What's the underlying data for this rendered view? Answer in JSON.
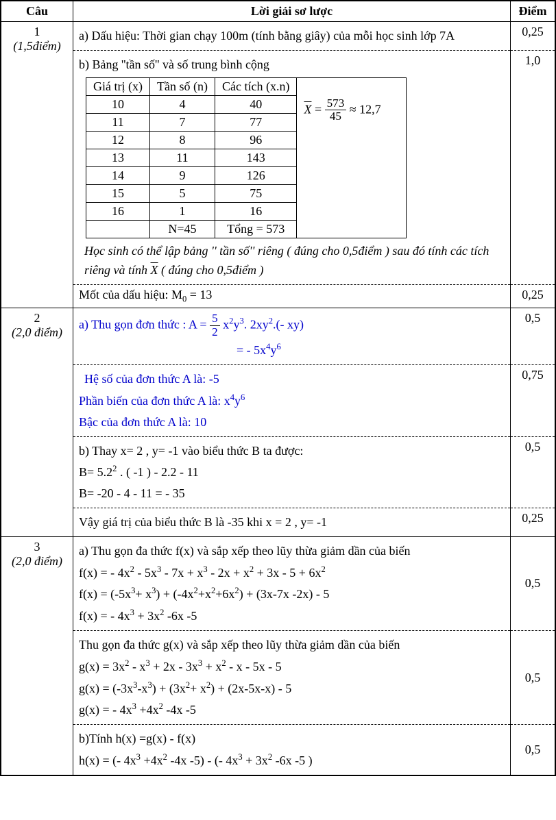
{
  "header": {
    "cau": "Câu",
    "loigiai": "Lời giải sơ lược",
    "diem": "Điểm"
  },
  "q1": {
    "num": "1",
    "pts": "(1,5điểm)",
    "a_text": "a)   Dấu hiệu: Thời gian chạy 100m (tính bằng giây) của mỗi học sinh lớp 7A",
    "a_diem": "0,25",
    "b_title": "b) Bảng ''tần số'' và số trung bình cộng",
    "b_diem": "1,0",
    "tbl_h1": "Giá trị (x)",
    "tbl_h2": "Tần số (n)",
    "tbl_h3": "Các tích (x.n)",
    "rows": [
      [
        "10",
        "4",
        "40"
      ],
      [
        "11",
        "7",
        "77"
      ],
      [
        "12",
        "8",
        "96"
      ],
      [
        "13",
        "11",
        "143"
      ],
      [
        "14",
        "9",
        "126"
      ],
      [
        "15",
        "5",
        "75"
      ],
      [
        "16",
        "1",
        "16"
      ]
    ],
    "tbl_sum_n": "N=45",
    "tbl_sum_xn": "Tổng = 573",
    "mean_num": "573",
    "mean_den": "45",
    "mean_approx": "≈ 12,7",
    "note1": "Học sinh có thể lập bảng '' tần số'' riêng ( đúng cho 0,5điểm ) sau đó tính các tích riêng và tính ",
    "note2": "  ( đúng cho 0,5điểm )",
    "mode_text": "Mốt của dấu hiệu: M",
    "mode_sub": "0",
    "mode_val": " = 13",
    "mode_diem": "0,25"
  },
  "q2": {
    "num": "2",
    "pts": "(2,0 điểm)",
    "a1": "a)   Thu gọn đơn thức :   A = ",
    "a1_frac_num": "5",
    "a1_frac_den": "2",
    "a1_rest": " x",
    "a1_exp1": "2",
    "a1_mid": "y",
    "a1_exp2": "3",
    "a1_tail": ". 2xy",
    "a1_exp3": "2",
    "a1_end": ".(- xy)",
    "a2_pre": "=   - 5x",
    "a2_exp1": "4",
    "a2_mid": "y",
    "a2_exp2": "6",
    "a_diem": "0,5",
    "b1": "Hệ số của đơn thức A là: -5",
    "b2_pre": "Phần biến của đơn thức A là:   x",
    "b2_e1": "4",
    "b2_mid": "y",
    "b2_e2": "6",
    "b3": "Bậc của đơn thức A là: 10",
    "b_diem": "0,75",
    "c1": "b)    Thay x= 2 , y= -1 vào biểu thức  B ta được:",
    "c2_pre": "B= 5.2",
    "c2_exp": "2",
    "c2_rest": " . ( -1 ) - 2.2 - 11",
    "c3": "B= -20 - 4 - 11 = - 35",
    "c_diem": "0,5",
    "d": "Vậy giá trị của biểu thức  B là -35  khi x = 2 , y= -1",
    "d_diem": "0,25"
  },
  "q3": {
    "num": "3",
    "pts": "(2,0 điểm)",
    "a1": "a) Thu gọn đa thức f(x) và sắp xếp theo lũy thừa giảm dần của biến",
    "a2_parts": [
      "f(x) = - 4x",
      "2",
      " - 5x",
      "3",
      " - 7x + x",
      "3",
      " - 2x + x",
      "2",
      " + 3x - 5 + 6x",
      "2"
    ],
    "a3_parts": [
      "f(x) = (-5x",
      "3",
      "+ x",
      "3",
      ")  + (-4x",
      "2",
      "+x",
      "2",
      "+6x",
      "2",
      ") + (3x-7x -2x) - 5"
    ],
    "a4_parts": [
      "f(x) = - 4x",
      "3",
      " + 3x",
      "2",
      " -6x -5"
    ],
    "a_diem": "0,5",
    "b1": "Thu gọn đa thức g(x) và sắp xếp theo lũy thừa giảm dần của biến",
    "b2_parts": [
      "g(x) = 3x",
      "2",
      " - x",
      "3",
      " + 2x - 3x",
      "3",
      "  + x",
      "2",
      " -  x  - 5x - 5"
    ],
    "b3_parts": [
      "g(x) = (-3x",
      "3",
      "-x",
      "3",
      ") + (3x",
      "2",
      "+ x",
      "2",
      ") + (2x-5x-x) - 5"
    ],
    "b4_parts": [
      "g(x) = - 4x",
      "3",
      " +4x",
      "2",
      " -4x -5"
    ],
    "b_diem": "0,5",
    "c1": "b)Tính h(x) =g(x) - f(x)",
    "c2_parts": [
      "h(x) = (- 4x",
      "3",
      " +4x",
      "2",
      " -4x -5) - (- 4x",
      "3",
      " + 3x",
      "2",
      " -6x -5 )"
    ],
    "c_diem": "0,5"
  }
}
